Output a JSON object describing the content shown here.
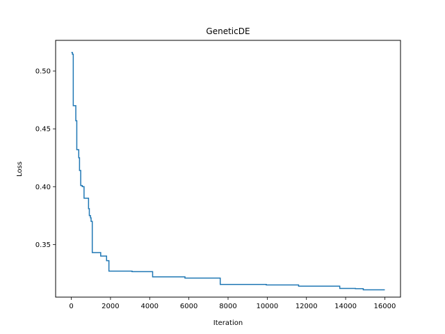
{
  "chart_data": {
    "type": "line",
    "title": "GeneticDE",
    "xlabel": "Iteration",
    "ylabel": "Loss",
    "xlim": [
      -800,
      16800
    ],
    "ylim": [
      0.3045,
      0.5265
    ],
    "xticks": [
      0,
      2000,
      4000,
      6000,
      8000,
      10000,
      12000,
      14000,
      16000
    ],
    "xtick_labels": [
      "0",
      "2000",
      "4000",
      "6000",
      "8000",
      "10000",
      "12000",
      "14000",
      "16000"
    ],
    "yticks": [
      0.35,
      0.4,
      0.45,
      0.5
    ],
    "ytick_labels": [
      "0.35",
      "0.40",
      "0.45",
      "0.50"
    ],
    "grid": false,
    "legend": "none",
    "series": [
      {
        "color": "#1f77b4",
        "step": true,
        "x": [
          0,
          60,
          100,
          200,
          230,
          280,
          380,
          420,
          480,
          560,
          650,
          880,
          920,
          980,
          1010,
          1070,
          1500,
          1800,
          1920,
          3100,
          4150,
          5800,
          7600,
          9950,
          11600,
          13700,
          14500,
          14900,
          16000
        ],
        "y": [
          0.516,
          0.5145,
          0.47,
          0.47,
          0.457,
          0.432,
          0.425,
          0.414,
          0.401,
          0.4,
          0.39,
          0.381,
          0.375,
          0.373,
          0.37,
          0.343,
          0.34,
          0.336,
          0.327,
          0.3265,
          0.322,
          0.321,
          0.3155,
          0.315,
          0.314,
          0.312,
          0.3118,
          0.3108,
          0.3108
        ]
      }
    ]
  }
}
